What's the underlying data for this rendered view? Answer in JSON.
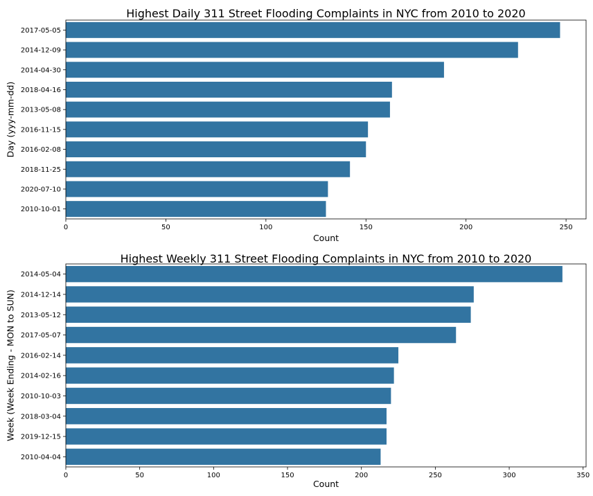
{
  "chart_data": [
    {
      "type": "bar",
      "orientation": "horizontal",
      "title": "Highest Daily 311 Street Flooding Complaints in NYC from 2010 to 2020",
      "xlabel": "Count",
      "ylabel": "Day (yyy-mm-dd)",
      "categories": [
        "2017-05-05",
        "2014-12-09",
        "2014-04-30",
        "2018-04-16",
        "2013-05-08",
        "2016-11-15",
        "2016-02-08",
        "2018-11-25",
        "2020-07-10",
        "2010-10-01"
      ],
      "values": [
        247,
        226,
        189,
        163,
        162,
        151,
        150,
        142,
        131,
        130
      ],
      "xlim": [
        0,
        260
      ],
      "xticks": [
        0,
        50,
        100,
        150,
        200,
        250
      ],
      "grid": false,
      "bar_color": "#3274a1"
    },
    {
      "type": "bar",
      "orientation": "horizontal",
      "title": "Highest Weekly 311 Street Flooding Complaints in NYC from 2010 to 2020",
      "xlabel": "Count",
      "ylabel": "Week (Week Ending - MON to SUN)",
      "categories": [
        "2014-05-04",
        "2014-12-14",
        "2013-05-12",
        "2017-05-07",
        "2016-02-14",
        "2014-02-16",
        "2010-10-03",
        "2018-03-04",
        "2019-12-15",
        "2010-04-04"
      ],
      "values": [
        336,
        276,
        274,
        264,
        225,
        222,
        220,
        217,
        217,
        213
      ],
      "xlim": [
        0,
        352
      ],
      "xticks": [
        0,
        50,
        100,
        150,
        200,
        250,
        300,
        350
      ],
      "grid": false,
      "bar_color": "#3274a1"
    }
  ]
}
